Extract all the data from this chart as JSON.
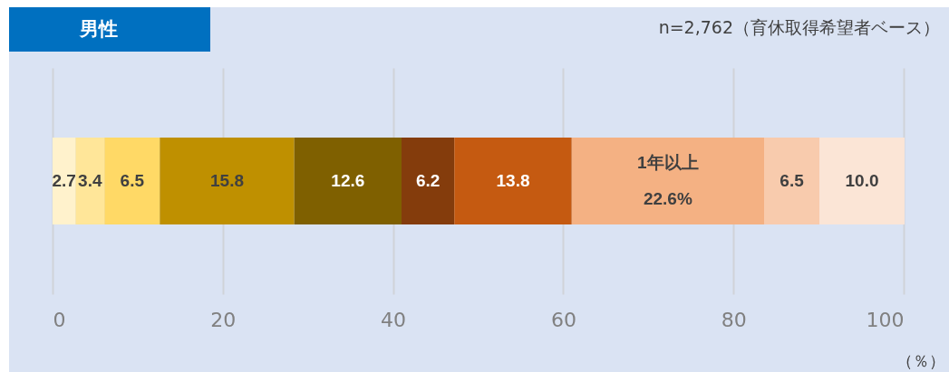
{
  "chart_data": {
    "type": "bar",
    "orientation": "horizontal",
    "stacked": true,
    "title": "男性",
    "subtitle": "n=2,762（育休取得希望者ベース）",
    "xlabel": "（％）",
    "categories": [
      null
    ],
    "series": [
      {
        "color": "#fff2cc",
        "values": [
          2.7
        ],
        "value_labels": [
          "2.7"
        ]
      },
      {
        "color": "#ffe699",
        "values": [
          3.4
        ],
        "value_labels": [
          "3.4"
        ]
      },
      {
        "color": "#ffd966",
        "values": [
          6.5
        ],
        "value_labels": [
          "6.5"
        ]
      },
      {
        "color": "#bf9000",
        "values": [
          15.8
        ],
        "value_labels": [
          "15.8"
        ]
      },
      {
        "color": "#7f6000",
        "values": [
          12.6
        ],
        "value_labels": [
          "12.6"
        ]
      },
      {
        "color": "#843c0c",
        "values": [
          6.2
        ],
        "value_labels": [
          "6.2"
        ]
      },
      {
        "color": "#c55a11",
        "values": [
          13.8
        ],
        "value_labels": [
          "13.8"
        ]
      },
      {
        "color": "#f4b183",
        "values": [
          22.6
        ],
        "value_labels": [
          "22.6%"
        ]
      },
      {
        "color": "#f8cbad",
        "values": [
          6.5
        ],
        "value_labels": [
          "6.5"
        ]
      },
      {
        "color": "#fbe5d6",
        "values": [
          10.0
        ],
        "value_labels": [
          "10.0"
        ]
      }
    ],
    "annotations": [
      "1年以上"
    ],
    "xlim": [
      0,
      100
    ],
    "xticks": [
      0,
      20,
      40,
      60,
      80,
      100
    ],
    "grid": "x",
    "legend": false
  }
}
